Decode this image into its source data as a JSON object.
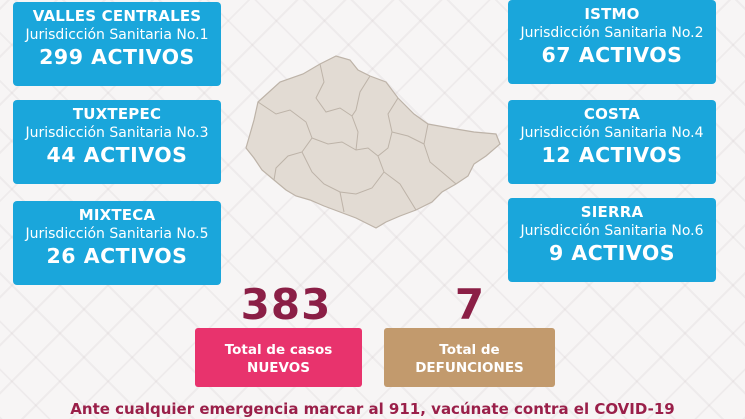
{
  "regions": [
    {
      "name": "VALLES CENTRALES",
      "jurisdiccion": "Jurisdicción Sanitaria No.1",
      "activos": "299 ACTIVOS"
    },
    {
      "name": "ISTMO",
      "jurisdiccion": "Jurisdicción Sanitaria No.2",
      "activos": "67 ACTIVOS"
    },
    {
      "name": "TUXTEPEC",
      "jurisdiccion": "Jurisdicción Sanitaria No.3",
      "activos": "44 ACTIVOS"
    },
    {
      "name": "COSTA",
      "jurisdiccion": "Jurisdicción Sanitaria No.4",
      "activos": "12 ACTIVOS"
    },
    {
      "name": "MIXTECA",
      "jurisdiccion": "Jurisdicción Sanitaria No.5",
      "activos": "26 ACTIVOS"
    },
    {
      "name": "SIERRA",
      "jurisdiccion": "Jurisdicción Sanitaria No.6",
      "activos": "9 ACTIVOS"
    }
  ],
  "totals": {
    "casos_value": "383",
    "casos_label_1": "Total de casos",
    "casos_label_2": "NUEVOS",
    "defunciones_value": "7",
    "defunciones_label_1": "Total de",
    "defunciones_label_2": "DEFUNCIONES"
  },
  "footer": "Ante cualquier emergencia marcar al 911, vacúnate contra el COVID-19",
  "colors": {
    "card": "#1aa6db",
    "casos": "#e8336d",
    "defunciones": "#c29a6d",
    "accent": "#8b1f46",
    "map": "#e2dbd3"
  }
}
